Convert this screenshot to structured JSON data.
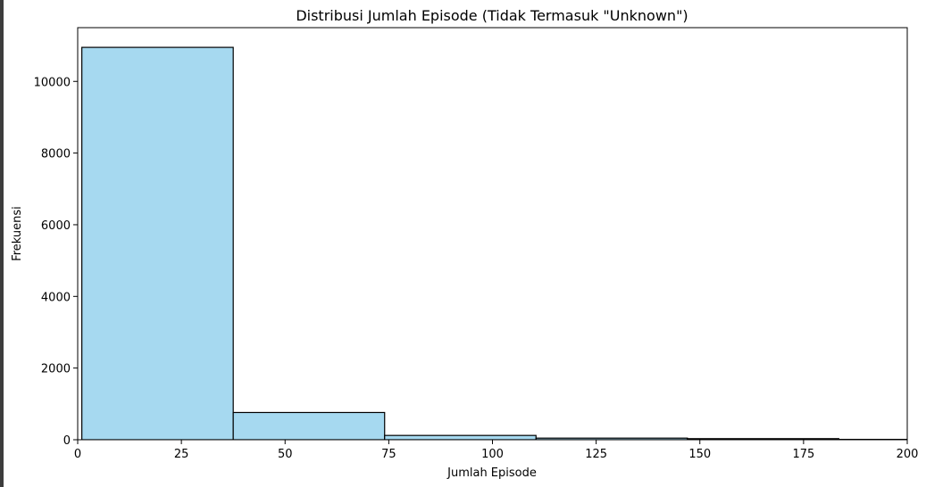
{
  "chart_data": {
    "type": "bar",
    "title": "Distribusi Jumlah Episode (Tidak Termasuk \"Unknown\")",
    "xlabel": "Jumlah Episode",
    "ylabel": "Frekuensi",
    "xlim": [
      0,
      200
    ],
    "ylim": [
      0,
      11500
    ],
    "xticks": [
      0,
      25,
      50,
      75,
      100,
      125,
      150,
      175,
      200
    ],
    "yticks": [
      0,
      2000,
      4000,
      6000,
      8000,
      10000
    ],
    "bins": [
      {
        "x0": 1,
        "x1": 37.5,
        "value": 10950
      },
      {
        "x0": 37.5,
        "x1": 74,
        "value": 760
      },
      {
        "x0": 74,
        "x1": 110.5,
        "value": 120
      },
      {
        "x0": 110.5,
        "x1": 147,
        "value": 45
      },
      {
        "x0": 147,
        "x1": 183.5,
        "value": 30
      },
      {
        "x0": 183.5,
        "x1": 220,
        "value": 10
      }
    ],
    "bar_fill": "#a6d9f0",
    "bar_edge": "#000000",
    "grid": false,
    "legend": "none"
  }
}
